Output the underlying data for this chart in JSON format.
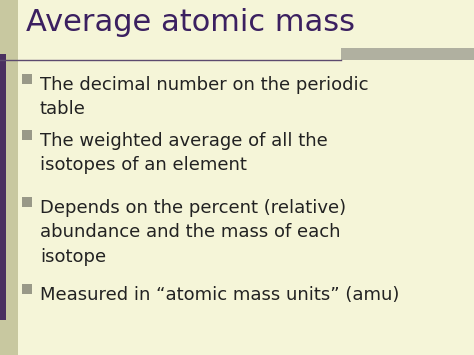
{
  "title": "Average atomic mass",
  "title_color": "#3b2060",
  "title_fontsize": 22,
  "background_color": "#f5f5d8",
  "left_bar_color": "#4a3060",
  "left_bar2_color": "#c8c8a0",
  "top_bar_color": "#b0b0a0",
  "divider_color": "#5c4a6e",
  "bullet_color": "#999988",
  "text_color": "#222222",
  "bullet_fontsize": 13,
  "bullets": [
    "The decimal number on the periodic\ntable",
    "The weighted average of all the\nisotopes of an element",
    "Depends on the percent (relative)\nabundance and the mass of each\nisotope",
    "Measured in “atomic mass units” (amu)"
  ],
  "figwidth": 4.74,
  "figheight": 3.55,
  "dpi": 100
}
